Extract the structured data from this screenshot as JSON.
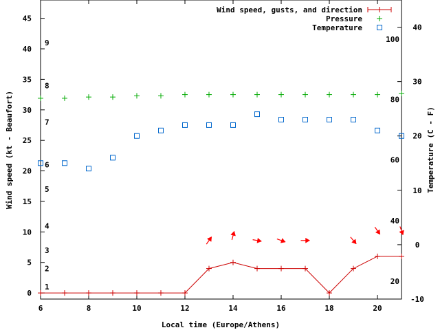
{
  "chart_data": {
    "type": "line",
    "title": "",
    "xlabel": "Local time (Europe/Athens)",
    "ylabel_left": "Wind speed (kt - Beaufort)",
    "ylabel_right": "Temperature (C - F)",
    "x_range": [
      6,
      21
    ],
    "x_ticks": [
      "6",
      "8",
      "10",
      "12",
      "14",
      "16",
      "18",
      "20"
    ],
    "y_left_range": [
      -1,
      48
    ],
    "y_left_ticks": [
      "0",
      "5",
      "10",
      "15",
      "20",
      "25",
      "30",
      "35",
      "40",
      "45"
    ],
    "y_right_range": [
      -10,
      45
    ],
    "y_right_ticks": [
      "-10",
      "0",
      "10",
      "20",
      "30",
      "40"
    ],
    "beaufort_labels": [
      {
        "text": "1",
        "kt": 1.0
      },
      {
        "text": "2",
        "kt": 4.0
      },
      {
        "text": "3",
        "kt": 7.0
      },
      {
        "text": "4",
        "kt": 11.0
      },
      {
        "text": "5",
        "kt": 17.0
      },
      {
        "text": "6",
        "kt": 21.0
      },
      {
        "text": "7",
        "kt": 28.0
      },
      {
        "text": "8",
        "kt": 34.0
      },
      {
        "text": "9",
        "kt": 41.0
      }
    ],
    "fahrenheit_labels": [
      {
        "text": "20",
        "celsius": -6.7
      },
      {
        "text": "40",
        "celsius": 4.4
      },
      {
        "text": "60",
        "celsius": 15.6
      },
      {
        "text": "80",
        "celsius": 26.7
      },
      {
        "text": "100",
        "celsius": 37.8
      }
    ],
    "legend_position": "top-right",
    "series": [
      {
        "name": "Wind speed, gusts, and direction",
        "color": "#cc0000",
        "marker": "plus",
        "axis": "left",
        "x": [
          6,
          7,
          8,
          9,
          10,
          11,
          12,
          13,
          14,
          15,
          16,
          17,
          18,
          19,
          20,
          21
        ],
        "values": [
          0,
          0,
          0,
          0,
          0,
          0,
          0,
          4,
          5,
          4,
          4,
          4,
          0,
          4,
          6,
          6
        ]
      },
      {
        "name": "Pressure",
        "color": "#00aa00",
        "marker": "plus",
        "axis": "left",
        "x": [
          6,
          7,
          8,
          9,
          10,
          11,
          12,
          13,
          14,
          15,
          16,
          17,
          18,
          19,
          20,
          21
        ],
        "values": [
          31.9,
          31.9,
          32.1,
          32.1,
          32.3,
          32.3,
          32.5,
          32.5,
          32.5,
          32.5,
          32.5,
          32.5,
          32.5,
          32.5,
          32.5,
          32.7
        ]
      },
      {
        "name": "Temperature",
        "color": "#0066cc",
        "marker": "square",
        "axis": "right",
        "x": [
          6,
          7,
          8,
          9,
          10,
          11,
          12,
          13,
          14,
          15,
          16,
          17,
          18,
          19,
          20,
          21
        ],
        "values": [
          15,
          15,
          14,
          16,
          20,
          21,
          22,
          22,
          22,
          24,
          23,
          23,
          23,
          23,
          21,
          20
        ]
      }
    ],
    "wind_direction_arrows": [
      {
        "x": 13,
        "kt": 8.6,
        "heading_deg": 35
      },
      {
        "x": 14,
        "kt": 9.4,
        "heading_deg": 15
      },
      {
        "x": 15,
        "kt": 8.6,
        "heading_deg": 100
      },
      {
        "x": 16,
        "kt": 8.6,
        "heading_deg": 110
      },
      {
        "x": 17,
        "kt": 8.6,
        "heading_deg": 90
      },
      {
        "x": 19,
        "kt": 8.6,
        "heading_deg": 140
      },
      {
        "x": 20,
        "kt": 10.2,
        "heading_deg": 145
      },
      {
        "x": 21,
        "kt": 10.2,
        "heading_deg": 160
      }
    ]
  }
}
